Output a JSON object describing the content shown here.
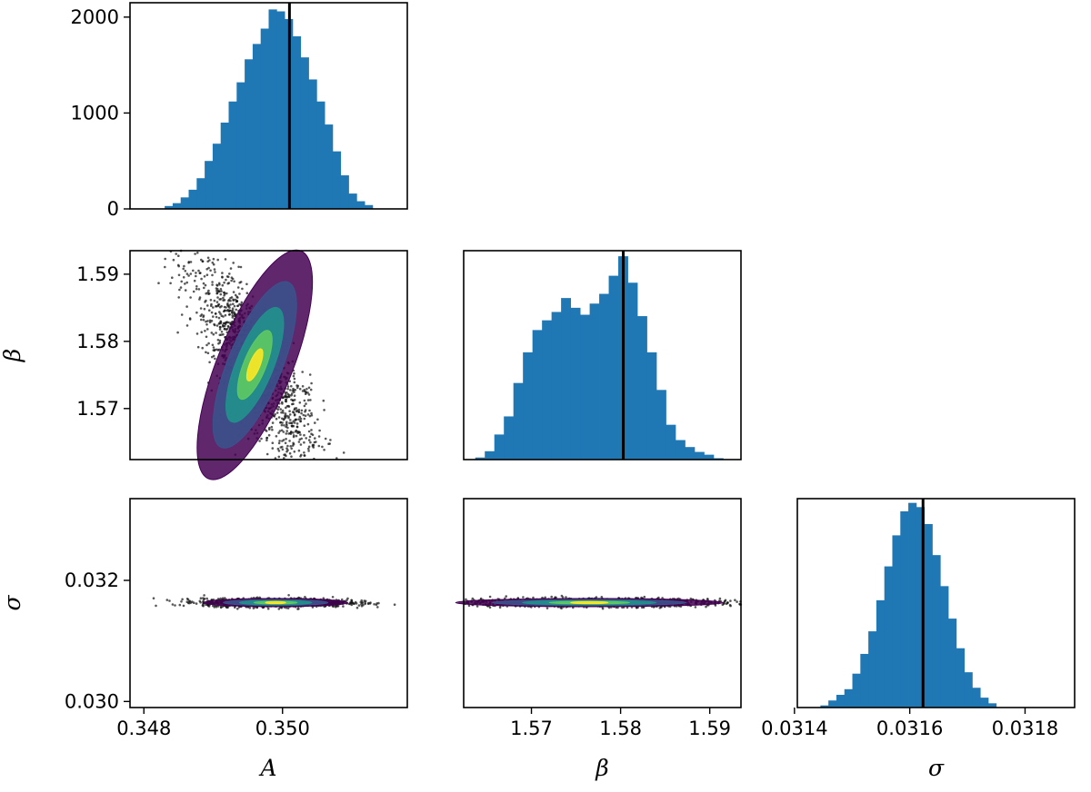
{
  "colors": {
    "hist": "#1f77b4",
    "truth": "#000000",
    "frame": "#000000",
    "viridis": [
      "#440154",
      "#3b528b",
      "#21918c",
      "#5ec962",
      "#fde725"
    ]
  },
  "chart_data": [
    {
      "id": "hist-A",
      "type": "bar",
      "xlim": [
        0.3478,
        0.3518
      ],
      "ylim": [
        0,
        2150
      ],
      "yticks": [
        "0",
        "1000",
        "2000"
      ],
      "xtick_labels_shown": false,
      "bin_range": [
        0.3483,
        0.3513
      ],
      "values": [
        30,
        60,
        120,
        200,
        320,
        500,
        680,
        900,
        1120,
        1320,
        1560,
        1720,
        1880,
        2080,
        2060,
        1980,
        1800,
        1580,
        1350,
        1120,
        880,
        600,
        350,
        160,
        80,
        40
      ],
      "truth": 0.3501
    },
    {
      "id": "scatter-A-beta",
      "type": "scatter",
      "xlim": [
        0.3478,
        0.3518
      ],
      "ylim": [
        1.5624,
        1.5935
      ],
      "yticks": [
        "1.57",
        "1.58",
        "1.59"
      ],
      "ylabel": "β",
      "xtick_labels_shown": false,
      "center": [
        0.3496,
        1.5765
      ],
      "spread": [
        0.00049,
        0.0082
      ],
      "correlation": -0.85
    },
    {
      "id": "hist-beta",
      "type": "bar",
      "xlim": [
        1.5624,
        1.5935
      ],
      "ylim": [
        0,
        1500
      ],
      "xtick_labels_shown": false,
      "bin_range": [
        1.5637,
        1.5915
      ],
      "values": [
        15,
        60,
        180,
        310,
        550,
        770,
        930,
        1000,
        1060,
        1160,
        1090,
        1040,
        1120,
        1190,
        1320,
        1460,
        1270,
        1030,
        770,
        500,
        250,
        140,
        90,
        55,
        35,
        10
      ],
      "truth": 1.5803
    },
    {
      "id": "scatter-A-sigma",
      "type": "scatter",
      "xlim": [
        0.3478,
        0.3518
      ],
      "ylim": [
        0.0299,
        0.03335
      ],
      "xticks": [
        "0.348",
        "0.350"
      ],
      "yticks": [
        "0.030",
        "0.032"
      ],
      "xlabel": "A",
      "ylabel": "σ",
      "center": [
        0.3499,
        0.031633
      ],
      "spread": [
        0.00052,
        3.4e-05
      ],
      "correlation": 0.0
    },
    {
      "id": "scatter-beta-sigma",
      "type": "scatter",
      "xlim": [
        1.5624,
        1.5935
      ],
      "ylim": [
        0.0299,
        0.03335
      ],
      "xticks": [
        "1.57",
        "1.58",
        "1.59"
      ],
      "xlabel": "β",
      "center": [
        1.5765,
        0.031633
      ],
      "spread": [
        0.0075,
        3.4e-05
      ],
      "correlation": 0.0
    },
    {
      "id": "hist-sigma",
      "type": "bar",
      "xlim": [
        0.031405,
        0.031886
      ],
      "ylim": [
        0,
        1480
      ],
      "xticks": [
        "0.0314",
        "0.0316",
        "0.0318"
      ],
      "xlabel": "σ",
      "bin_range": [
        0.031445,
        0.03175
      ],
      "values": [
        15,
        50,
        90,
        130,
        240,
        380,
        540,
        760,
        1000,
        1220,
        1390,
        1450,
        1420,
        1300,
        1080,
        860,
        630,
        420,
        250,
        140,
        70,
        30
      ],
      "truth": 0.031623
    }
  ]
}
